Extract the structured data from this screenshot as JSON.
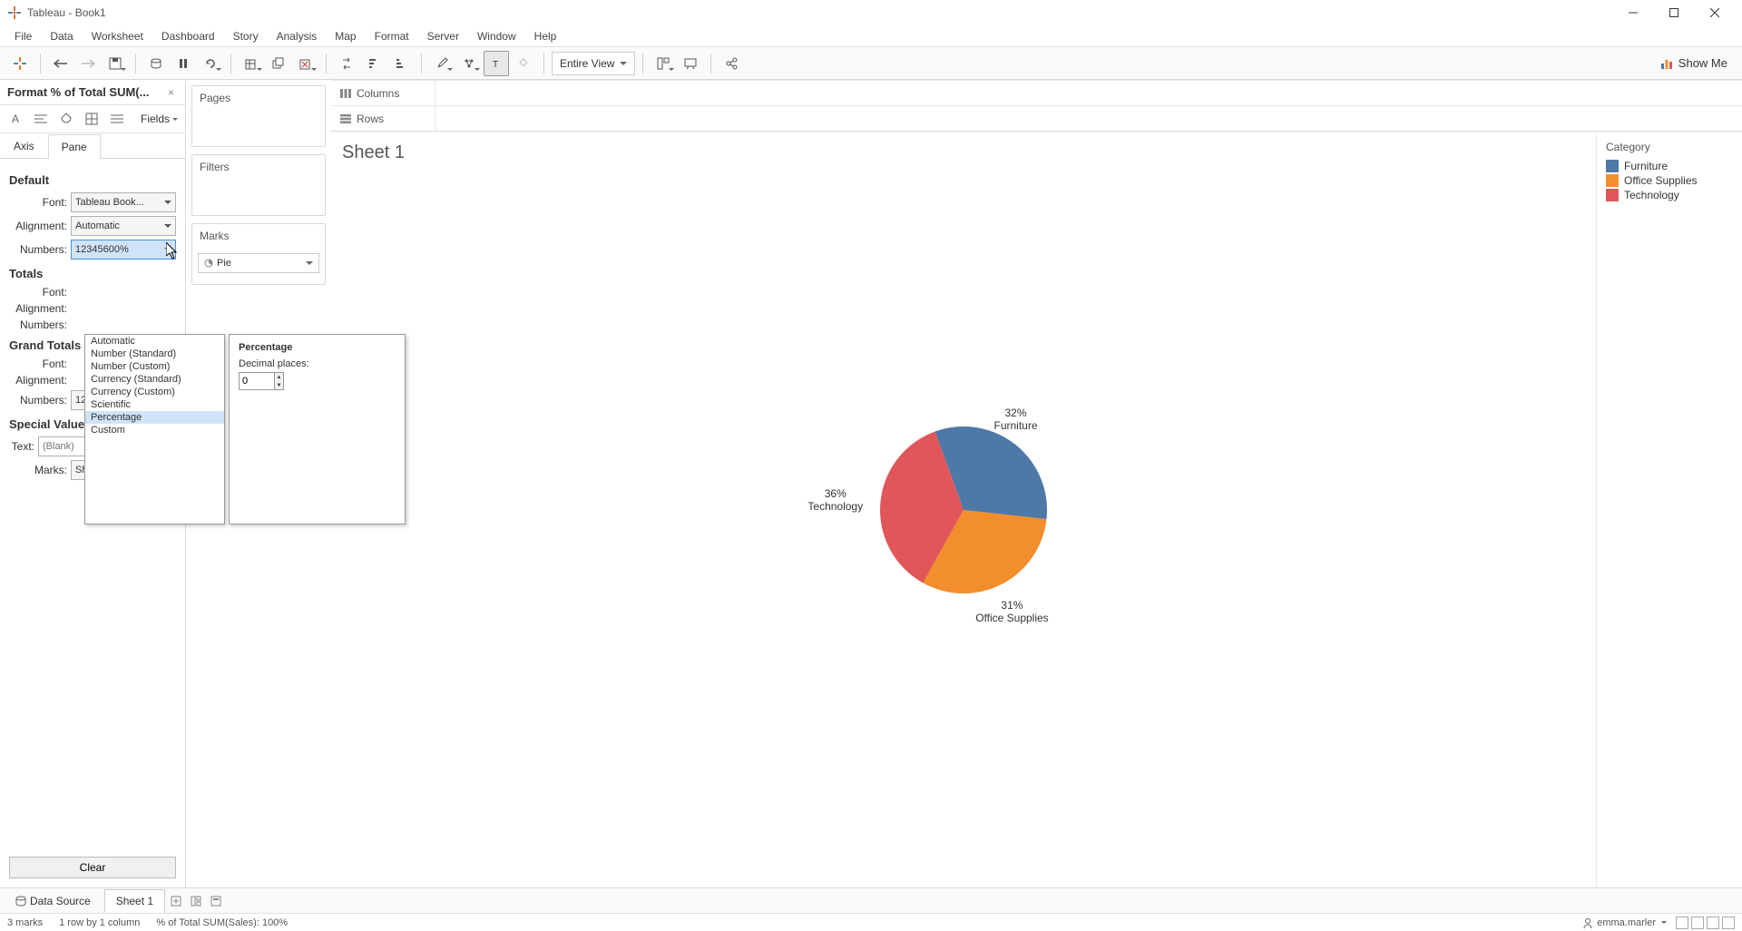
{
  "window": {
    "title": "Tableau - Book1"
  },
  "menubar": [
    "File",
    "Data",
    "Worksheet",
    "Dashboard",
    "Story",
    "Analysis",
    "Map",
    "Format",
    "Server",
    "Window",
    "Help"
  ],
  "toolbar": {
    "view_mode": "Entire View",
    "showme": "Show Me"
  },
  "format_panel": {
    "title": "Format % of Total SUM(...",
    "fields_label": "Fields",
    "tabs": {
      "axis": "Axis",
      "pane": "Pane"
    },
    "sections": {
      "default": "Default",
      "totals": "Totals",
      "grand_totals": "Grand Totals",
      "special": "Special Values (eg. NULL)"
    },
    "labels": {
      "font": "Font:",
      "alignment": "Alignment:",
      "numbers": "Numbers:",
      "text": "Text:",
      "marks": "Marks:"
    },
    "default": {
      "font": "Tableau Book...",
      "alignment": "Automatic",
      "numbers": "12345600%"
    },
    "totals": {
      "font": "",
      "alignment": "",
      "numbers": ""
    },
    "grand_totals": {
      "font": "",
      "alignment": "",
      "numbers": "12345600%"
    },
    "special": {
      "text_placeholder": "(Blank)",
      "marks": "Show at Indic..."
    },
    "clear": "Clear"
  },
  "number_format_popup": {
    "options": [
      "Automatic",
      "Number (Standard)",
      "Number (Custom)",
      "Currency (Standard)",
      "Currency (Custom)",
      "Scientific",
      "Percentage",
      "Custom"
    ],
    "selected_index": 6,
    "detail_title": "Percentage",
    "decimal_label": "Decimal places:",
    "decimal_value": "0"
  },
  "cards": {
    "pages": "Pages",
    "filters": "Filters",
    "marks": "Marks",
    "marks_type": "Pie"
  },
  "shelves": {
    "columns": "Columns",
    "rows": "Rows"
  },
  "sheet": {
    "title": "Sheet 1"
  },
  "chart": {
    "type": "pie",
    "radius": 92,
    "center_offset_x": 0,
    "center_offset_y": 0,
    "slices": [
      {
        "label": "Furniture",
        "pct": "32%",
        "value": 32,
        "color": "#4e79a7"
      },
      {
        "label": "Office Supplies",
        "pct": "31%",
        "value": 31,
        "color": "#f28e2b"
      },
      {
        "label": "Technology",
        "pct": "36%",
        "value": 36,
        "color": "#e15759"
      }
    ],
    "start_angle_deg": -20,
    "label_font_size": 12,
    "label_color": "#333333",
    "background": "#ffffff"
  },
  "legend": {
    "title": "Category",
    "items": [
      {
        "label": "Furniture",
        "color": "#4e79a7"
      },
      {
        "label": "Office Supplies",
        "color": "#f28e2b"
      },
      {
        "label": "Technology",
        "color": "#e15759"
      }
    ]
  },
  "bottom_tabs": {
    "data_source": "Data Source",
    "sheet1": "Sheet 1"
  },
  "status": {
    "marks": "3 marks",
    "rowcol": "1 row by 1 column",
    "measure": "% of Total SUM(Sales): 100%",
    "user": "emma.marler"
  }
}
